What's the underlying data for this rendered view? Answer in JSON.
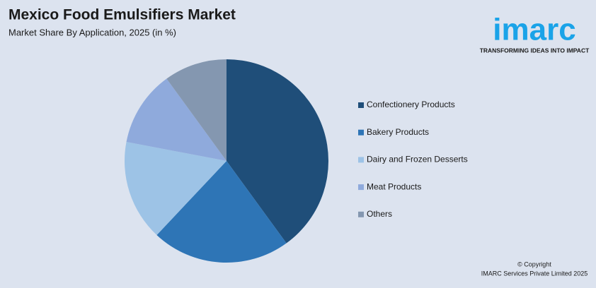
{
  "chart_data": {
    "type": "pie",
    "title": "Mexico Food Emulsifiers Market",
    "subtitle": "Market Share By Application, 2025 (in %)",
    "categories": [
      "Confectionery Products",
      "Bakery Products",
      "Dairy and Frozen Desserts",
      "Meat Products",
      "Others"
    ],
    "values": [
      40,
      22,
      16,
      12,
      10
    ],
    "colors": [
      "#1f4e79",
      "#2e75b6",
      "#9dc3e6",
      "#8faadc",
      "#8497b0"
    ],
    "legend": "right"
  },
  "logo": {
    "name": "imarc",
    "tagline": "TRANSFORMING IDEAS INTO IMPACT"
  },
  "copyright": {
    "line1": "© Copyright",
    "line2": "IMARC Services Private Limited 2025"
  }
}
